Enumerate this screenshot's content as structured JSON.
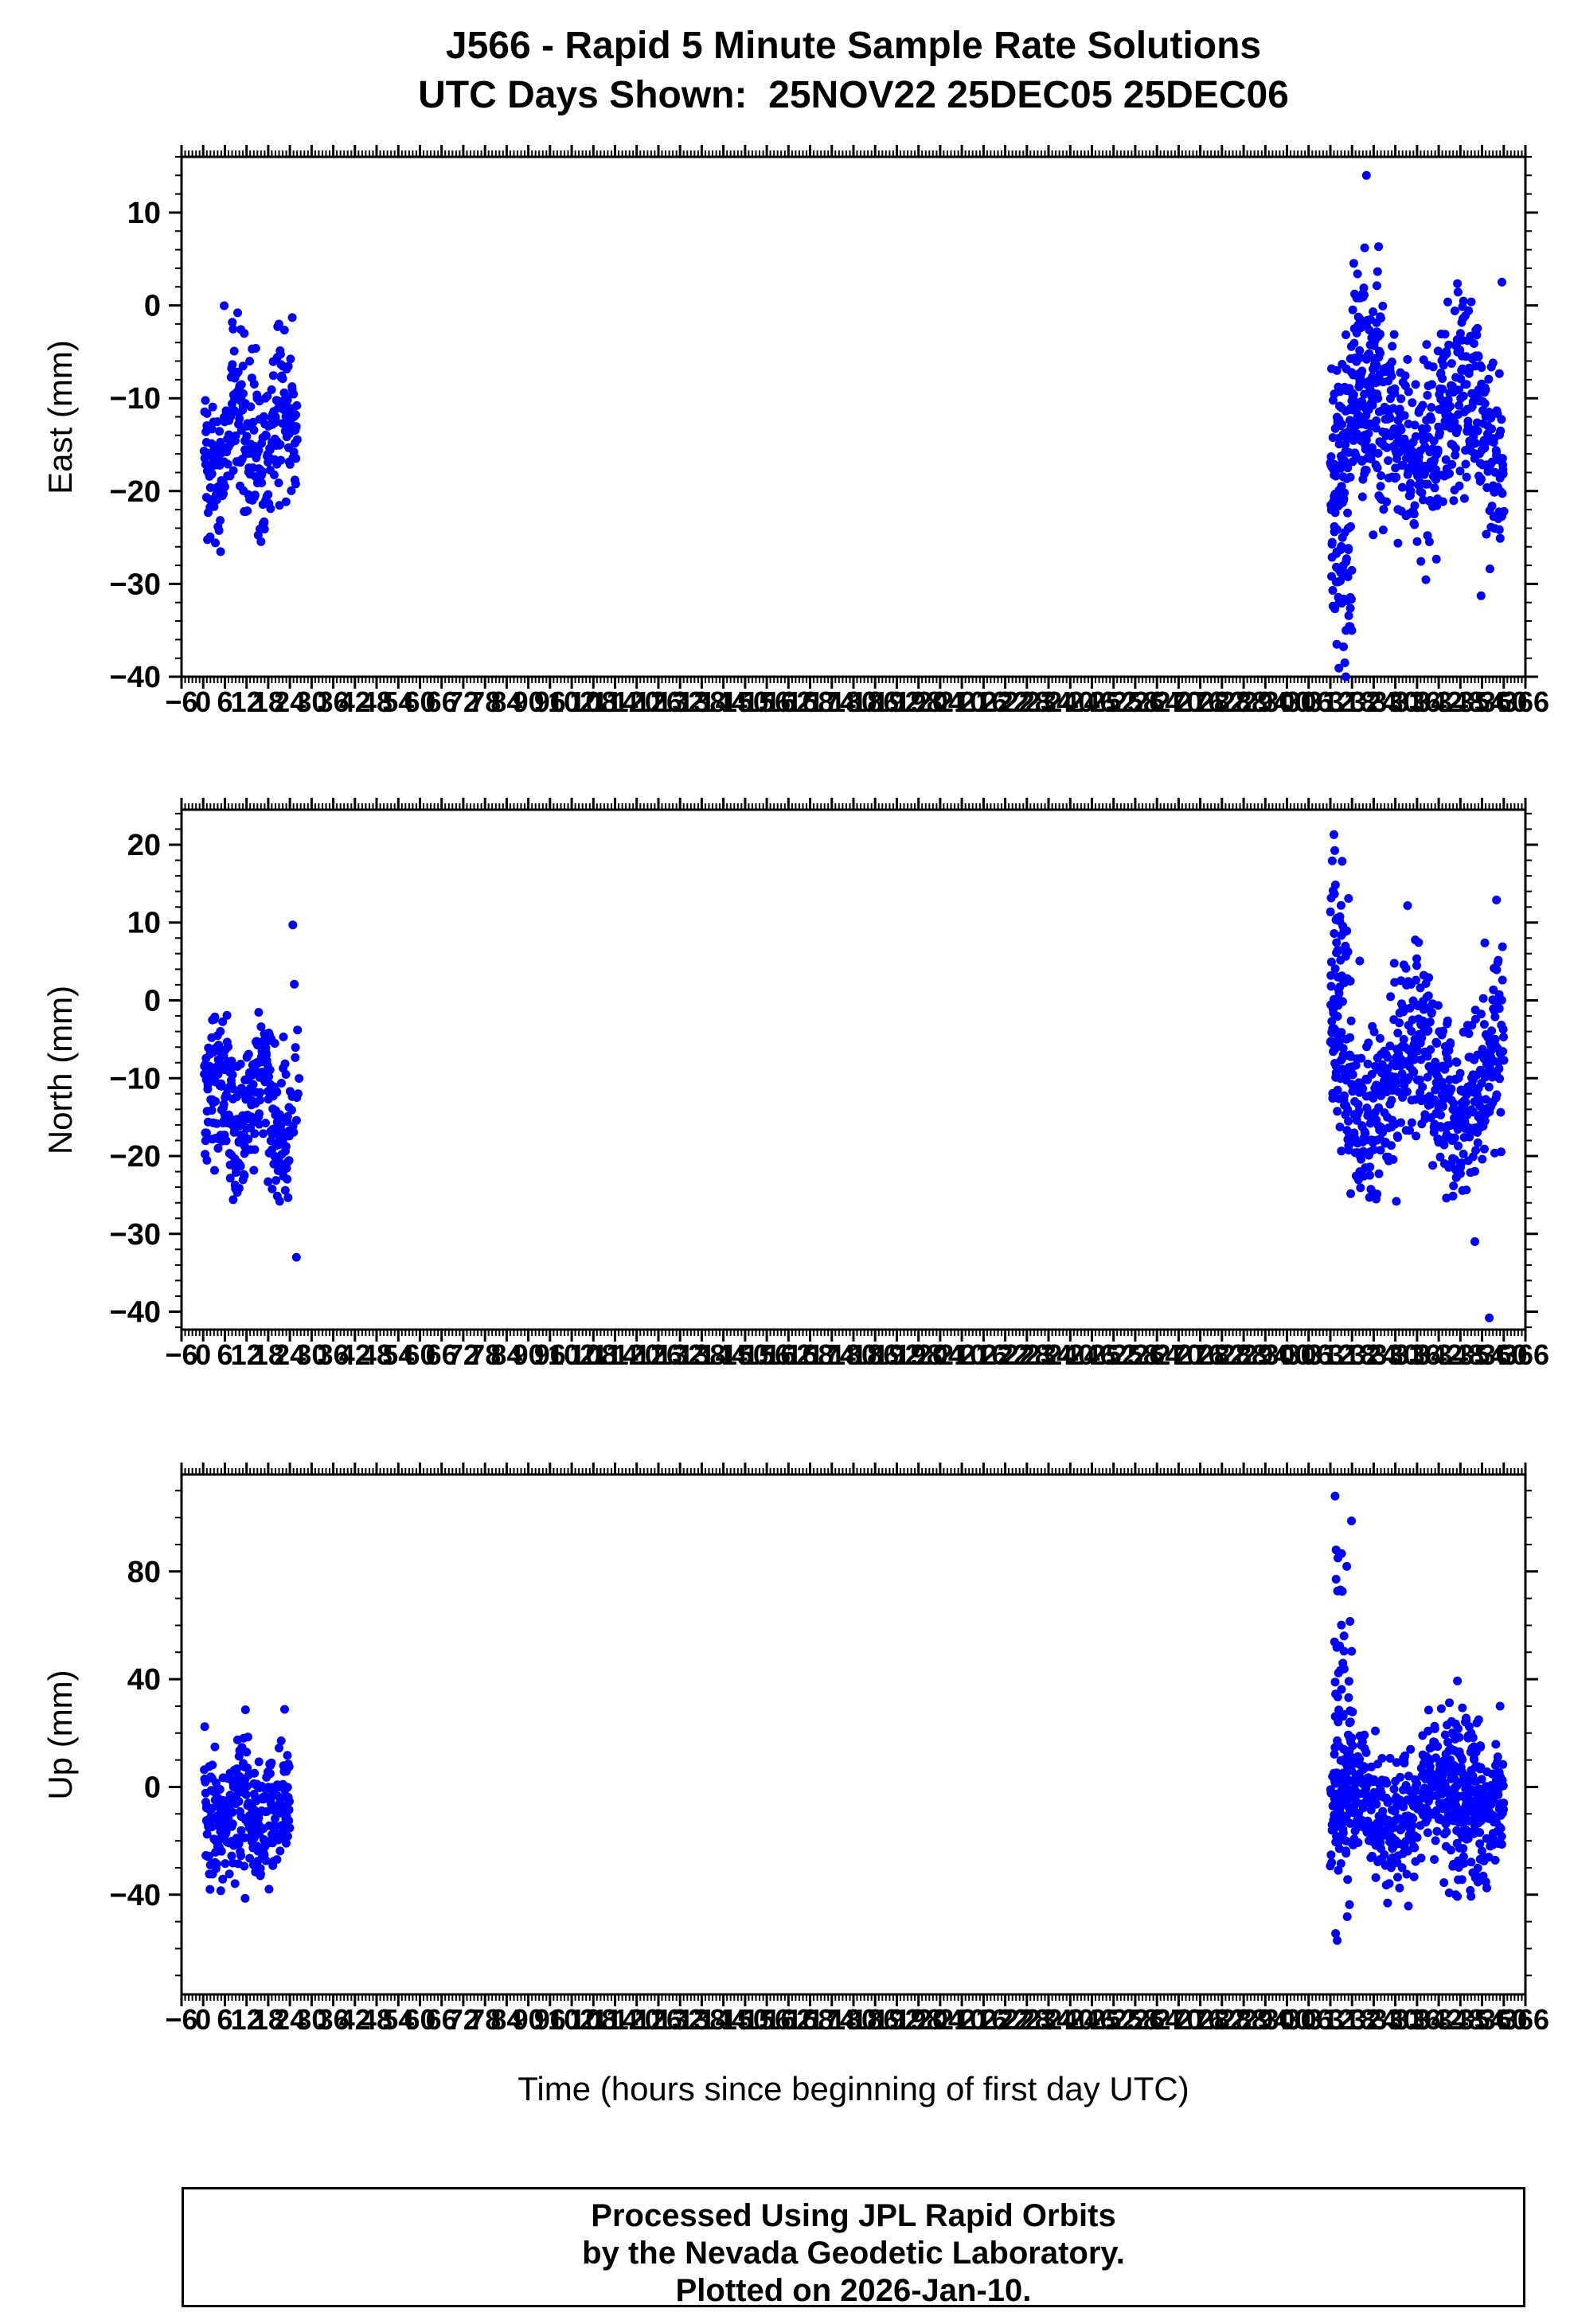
{
  "header": {
    "title": "J566 - Rapid 5 Minute Sample Rate Solutions",
    "subtitle": "UTC Days Shown:  25NOV22 25DEC05 25DEC06"
  },
  "footer": {
    "lines": [
      "Processed Using JPL Rapid Orbits",
      "by the Nevada Geodetic Laboratory.",
      "Plotted on 2026-Jan-10."
    ]
  },
  "chart_data": {
    "type": "scatter",
    "title": "J566 - Rapid 5 Minute Sample Rate Solutions",
    "subtitle": "UTC Days Shown:  25NOV22 25DEC05 25DEC06",
    "station": "J566",
    "utc_days": [
      "25NOV22",
      "25DEC05",
      "25DEC06"
    ],
    "xlabel": "Time (hours since beginning of first day UTC)",
    "marker_color": "#0000ff",
    "seed": 20261,
    "x_domain": [
      -6,
      366
    ],
    "x_major_tick": 6,
    "x_minor_tick": 1,
    "x_tick_labels": [
      -6,
      0,
      6,
      12,
      18,
      24,
      30,
      36,
      42,
      48,
      54,
      60,
      66,
      72,
      78,
      84,
      90,
      96,
      102,
      108,
      114,
      120,
      126,
      132,
      138,
      144,
      150,
      156,
      162,
      168,
      174,
      180,
      186,
      192,
      198,
      204,
      210,
      216,
      222,
      228,
      234,
      240,
      246,
      252,
      258,
      264,
      270,
      276,
      282,
      288,
      294,
      300,
      306,
      312,
      318,
      324,
      330,
      336,
      342,
      348,
      354,
      360,
      366
    ],
    "grid": false,
    "legend": false,
    "panels": [
      {
        "name": "east",
        "ylabel": "East (mm)",
        "ylim": [
          -40,
          16
        ],
        "yticks": [
          10,
          0,
          -10,
          -20,
          -30,
          -40
        ],
        "y_minor_tick": 2,
        "clusters": [
          {
            "t0": 0.3,
            "t1": 26,
            "n": 300,
            "mean": -15,
            "std": 4.5,
            "amp": 4,
            "per": 13,
            "ymin": -28,
            "ymax": 1.5
          },
          {
            "t0": 312,
            "t1": 360,
            "n": 576,
            "mean": -13.5,
            "std": 5.5,
            "amp": 4,
            "per": 26,
            "ymin": -32,
            "ymax": 7
          },
          {
            "t0": 312.3,
            "t1": 318,
            "n": 60,
            "mean": -27,
            "std": 6,
            "amp": 0,
            "per": 10,
            "ymin": -39.5,
            "ymax": -8
          },
          {
            "t0": 318,
            "t1": 326,
            "n": 60,
            "mean": -6,
            "std": 6,
            "amp": 0,
            "per": 10,
            "ymin": -18,
            "ymax": 8
          }
        ],
        "outliers": [
          [
            322,
            14
          ],
          [
            316,
            -38.5
          ],
          [
            316.3,
            -40
          ],
          [
            313.8,
            -36.5
          ],
          [
            359.5,
            2.5
          ],
          [
            321.5,
            6.2
          ]
        ]
      },
      {
        "name": "north",
        "ylabel": "North (mm)",
        "ylim": [
          -42.3,
          24.5
        ],
        "yticks": [
          20,
          10,
          0,
          -10,
          -20,
          -30,
          -40
        ],
        "y_minor_tick": 2,
        "clusters": [
          {
            "t0": 0.3,
            "t1": 24,
            "n": 290,
            "mean": -13,
            "std": 5,
            "amp": 4,
            "per": 12,
            "ymin": -27,
            "ymax": 8
          },
          {
            "t0": 24.5,
            "t1": 26.5,
            "n": 12,
            "mean": -8,
            "std": 6,
            "amp": 0,
            "per": 10,
            "ymin": -20,
            "ymax": 10
          },
          {
            "t0": 312,
            "t1": 360,
            "n": 576,
            "mean": -11,
            "std": 6,
            "amp": 5,
            "per": 24,
            "ymin": -26,
            "ymax": 14
          },
          {
            "t0": 312,
            "t1": 317,
            "n": 40,
            "mean": 8,
            "std": 6,
            "amp": 0,
            "per": 10,
            "ymin": -4,
            "ymax": 21
          }
        ],
        "outliers": [
          [
            25.8,
            -33
          ],
          [
            24.8,
            9.7
          ],
          [
            313,
            21.3
          ],
          [
            352,
            -31
          ],
          [
            356,
            -40.8
          ],
          [
            358,
            12.9
          ]
        ]
      },
      {
        "name": "up",
        "ylabel": "Up (mm)",
        "ylim": [
          -77,
          116
        ],
        "yticks": [
          80,
          40,
          0,
          -40
        ],
        "y_minor_tick": 10,
        "clusters": [
          {
            "t0": 0.3,
            "t1": 24,
            "n": 290,
            "mean": -10,
            "std": 12,
            "amp": 6,
            "per": 12,
            "ymin": -42,
            "ymax": 36
          },
          {
            "t0": 312,
            "t1": 360,
            "n": 560,
            "mean": -8,
            "std": 12,
            "amp": 7,
            "per": 22,
            "ymin": -45,
            "ymax": 34
          },
          {
            "t0": 313,
            "t1": 318,
            "n": 70,
            "mean": 25,
            "std": 40,
            "amp": 0,
            "per": 10,
            "ymin": -57,
            "ymax": 108
          },
          {
            "t0": 344,
            "t1": 354,
            "n": 70,
            "mean": 12,
            "std": 14,
            "amp": 0,
            "per": 10,
            "ymin": -20,
            "ymax": 47
          }
        ],
        "outliers": [
          [
            313.3,
            108
          ],
          [
            313.6,
            88
          ],
          [
            314.1,
            85
          ],
          [
            359,
            30
          ],
          [
            313.9,
            -57
          ]
        ]
      }
    ]
  }
}
